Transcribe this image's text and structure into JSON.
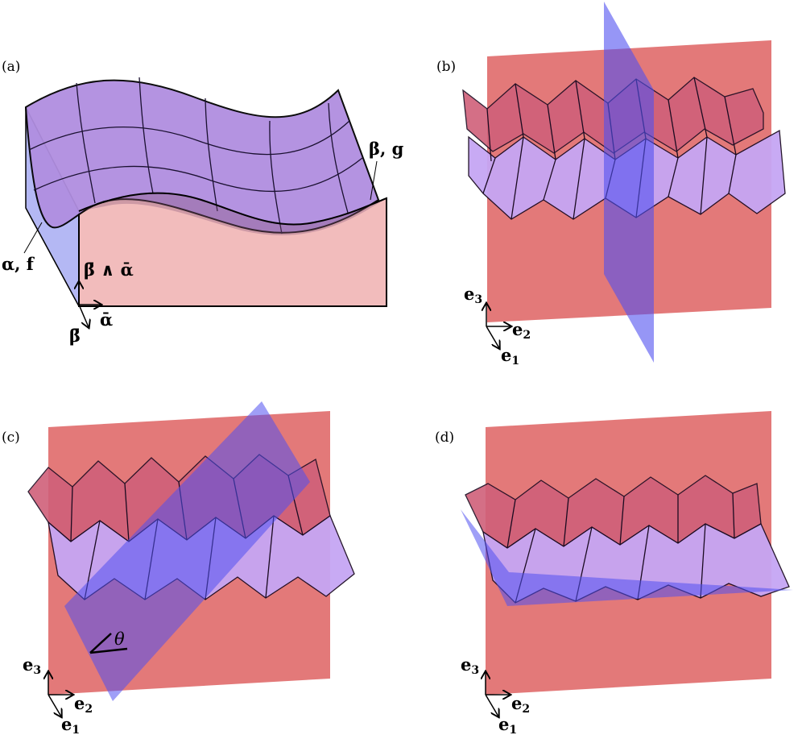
{
  "panels": [
    {
      "id": "a",
      "label": "(a)"
    },
    {
      "id": "b",
      "label": "(b)"
    },
    {
      "id": "c",
      "label": "(c)"
    },
    {
      "id": "d",
      "label": "(d)"
    }
  ],
  "panel_a": {
    "beta_g": "β, g",
    "alpha_f": "α, f",
    "wedge": "β̄ ∧ ᾱ",
    "alpha_bar": "ᾱ",
    "beta_bar": "β̄"
  },
  "axes": {
    "e3": "e",
    "e3_sub": "3",
    "e2": "e",
    "e2_sub": "2",
    "e1": "e",
    "e1_sub": "1"
  },
  "panel_c": {
    "angle": "θ"
  },
  "colors": {
    "red_plane": "#e06a6a",
    "blue_plane": "#5050f0",
    "surface_purple": "#b08ee0",
    "surface_pink": "#f2bcbc",
    "side_blue": "#b4b8f4",
    "origami_light": "#c6a6f4",
    "origami_dark": "#a878d8"
  }
}
